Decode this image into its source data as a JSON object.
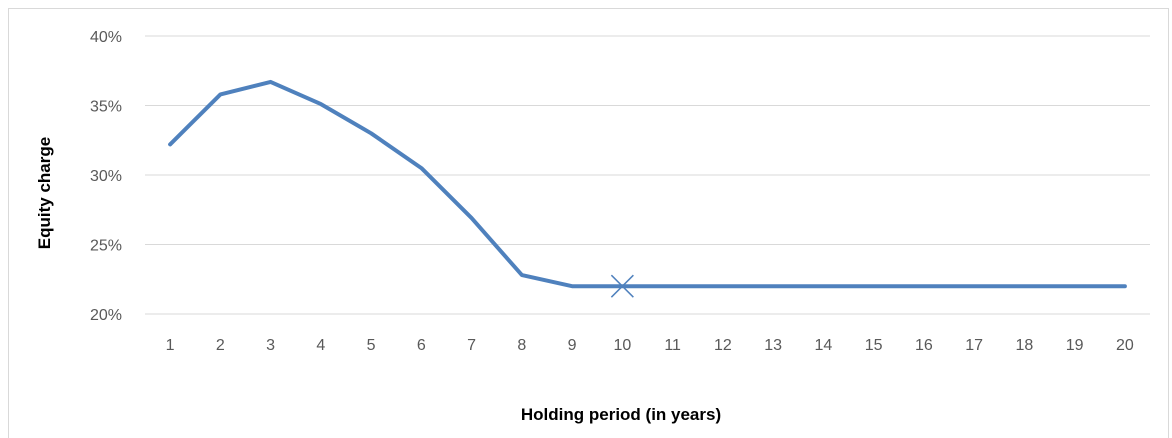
{
  "chart_data": {
    "type": "line",
    "title": "",
    "xlabel": "Holding period (in years)",
    "ylabel": "Equity charge",
    "x": [
      "1",
      "2",
      "3",
      "4",
      "5",
      "6",
      "7",
      "8",
      "9",
      "10",
      "11",
      "12",
      "13",
      "14",
      "15",
      "16",
      "17",
      "18",
      "19",
      "20"
    ],
    "series": [
      {
        "values": [
          0.322,
          0.358,
          0.367,
          0.351,
          0.33,
          0.305,
          0.269,
          0.228,
          0.22,
          0.22,
          0.22,
          0.22,
          0.22,
          0.22,
          0.22,
          0.22,
          0.22,
          0.22,
          0.22,
          0.22
        ],
        "color": "#4f81bd"
      }
    ],
    "marker": {
      "x": "10",
      "y": 0.22,
      "symbol": "x",
      "color": "#4f81bd"
    },
    "ylim": [
      0.2,
      0.4
    ],
    "yticks": [
      0.2,
      0.25,
      0.3,
      0.35,
      0.4
    ],
    "ytick_labels": [
      "20%",
      "25%",
      "30%",
      "35%",
      "40%"
    ],
    "grid": "horizontal",
    "legend": "none"
  }
}
